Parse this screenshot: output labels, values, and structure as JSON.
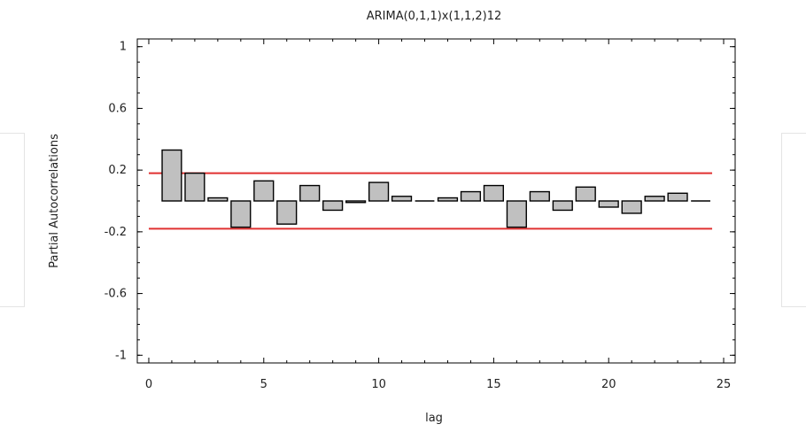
{
  "chart_data": {
    "type": "bar",
    "title": "ARIMA(0,1,1)x(1,1,2)12",
    "xlabel": "lag",
    "ylabel": "Partial Autocorrelations",
    "xlim": [
      -0.5,
      25.5
    ],
    "ylim": [
      -1.05,
      1.05
    ],
    "xticks": [
      "0",
      "5",
      "10",
      "15",
      "20",
      "25"
    ],
    "yticks": [
      "1",
      "0.6",
      "0.2",
      "-0.2",
      "-0.6",
      "-1"
    ],
    "x": [
      1,
      2,
      3,
      4,
      5,
      6,
      7,
      8,
      9,
      10,
      11,
      12,
      13,
      14,
      15,
      16,
      17,
      18,
      19,
      20,
      21,
      22,
      23,
      24
    ],
    "values": [
      0.33,
      0.18,
      0.02,
      -0.17,
      0.13,
      -0.15,
      0.1,
      -0.06,
      -0.01,
      0.12,
      0.03,
      0.0,
      0.02,
      0.06,
      0.1,
      -0.17,
      0.06,
      -0.06,
      0.09,
      -0.04,
      -0.08,
      0.03,
      0.05,
      0.0
    ],
    "limits": [
      0.18,
      -0.18
    ],
    "bar_fill": "#c0c0c0",
    "bar_stroke": "#000000",
    "limit_color": "#e03030",
    "grid": false
  }
}
